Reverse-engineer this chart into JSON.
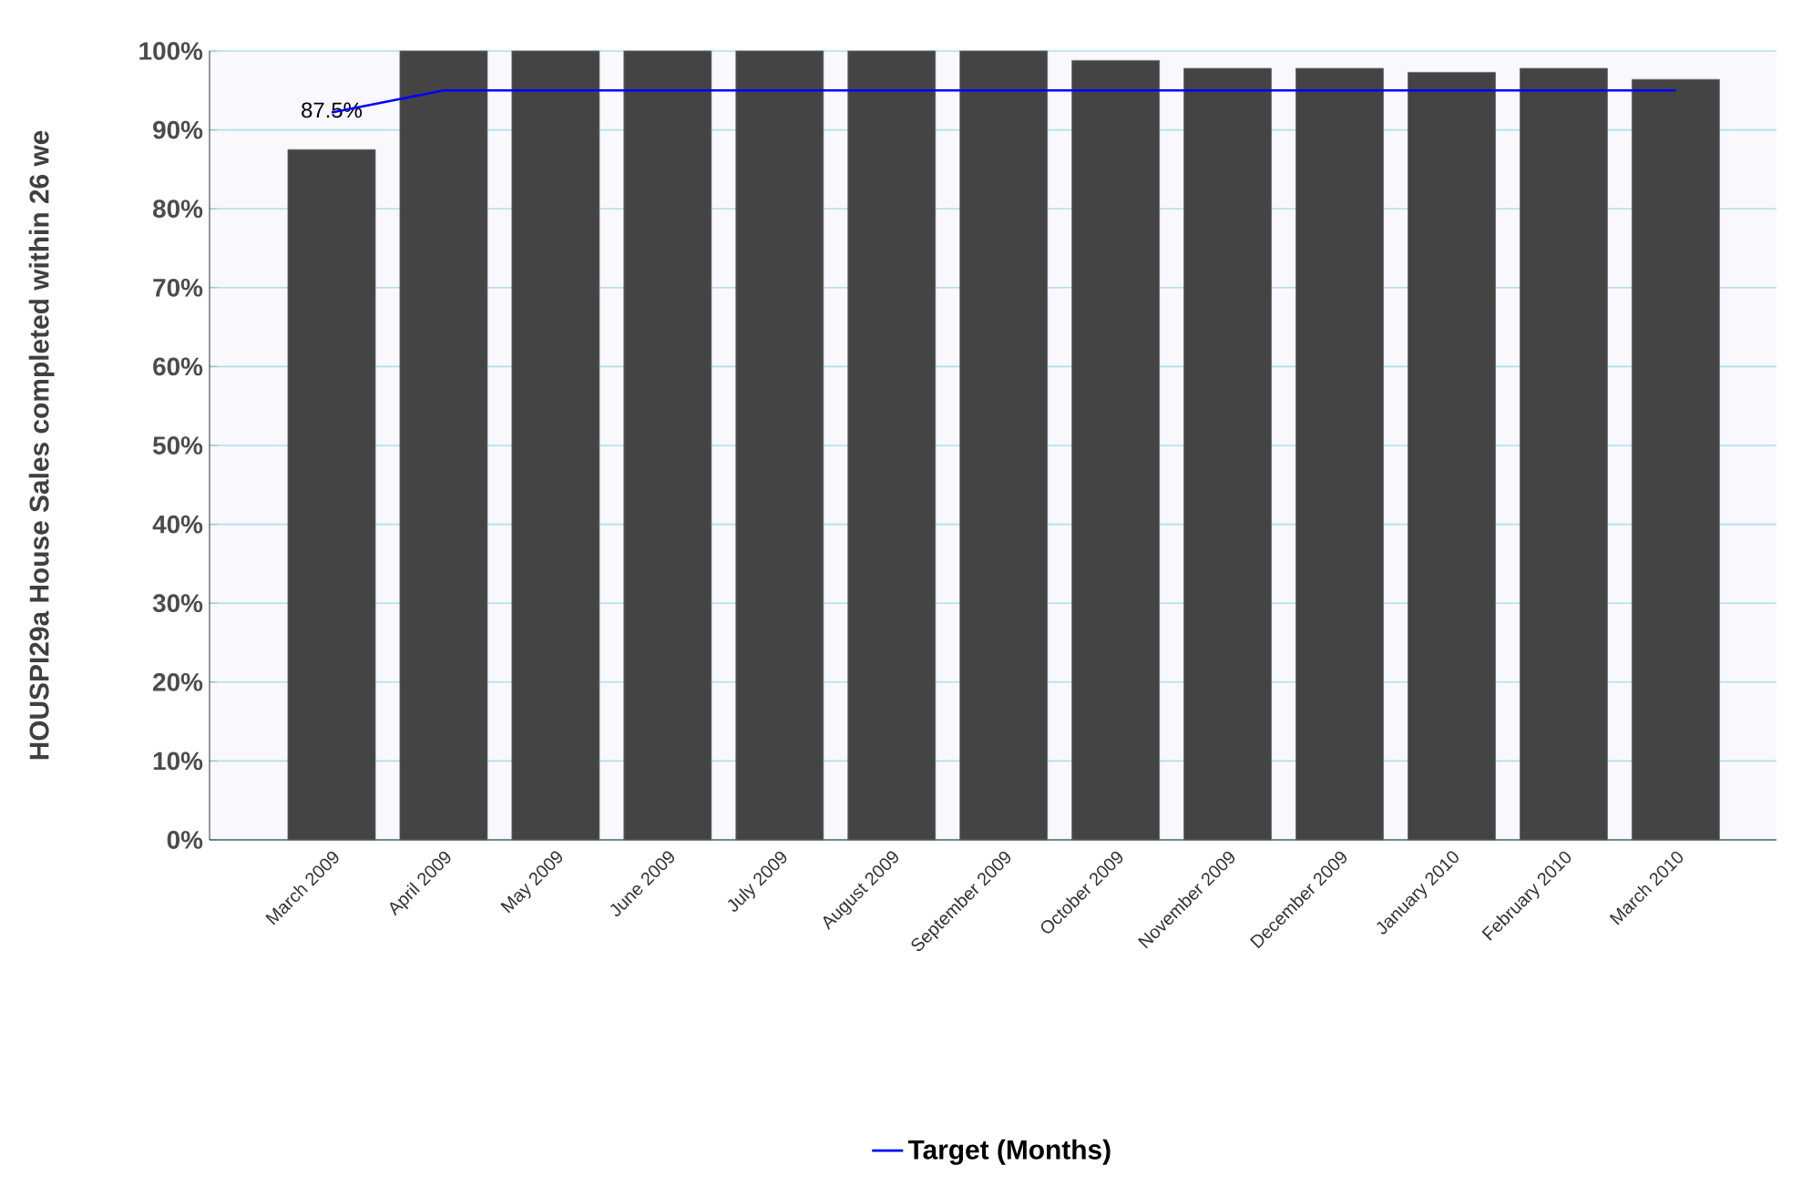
{
  "chart_data": {
    "type": "bar",
    "ylabel": "HOUSPI29a House Sales completed within 26 we",
    "categories": [
      "March 2009",
      "April 2009",
      "May 2009",
      "June 2009",
      "July 2009",
      "August 2009",
      "September 2009",
      "October 2009",
      "November 2009",
      "December 2009",
      "January 2010",
      "February 2010",
      "March 2010"
    ],
    "series": [
      {
        "color": "#444444",
        "values": [
          87.5,
          100,
          100,
          100,
          100,
          100,
          100,
          98.8,
          97.8,
          97.8,
          97.3,
          97.8,
          96.4
        ],
        "value_labels": [
          "87.5%",
          null,
          null,
          null,
          null,
          null,
          null,
          null,
          null,
          null,
          null,
          null,
          null
        ]
      },
      {
        "type": "line",
        "name": "Target (Months)",
        "color": "#0000ff",
        "values": [
          92.2,
          95,
          95,
          95,
          95,
          95,
          95,
          95,
          95,
          95,
          95,
          95,
          95
        ]
      }
    ],
    "ylim": [
      0,
      100
    ],
    "yticks": [
      {
        "value": 0,
        "label": "0%"
      },
      {
        "value": 10,
        "label": "10%"
      },
      {
        "value": 20,
        "label": "20%"
      },
      {
        "value": 30,
        "label": "30%"
      },
      {
        "value": 40,
        "label": "40%"
      },
      {
        "value": 50,
        "label": "50%"
      },
      {
        "value": 60,
        "label": "60%"
      },
      {
        "value": 70,
        "label": "70%"
      },
      {
        "value": 80,
        "label": "80%"
      },
      {
        "value": 90,
        "label": "90%"
      },
      {
        "value": 100,
        "label": "100%"
      }
    ],
    "grid": "y",
    "legend": "bottom",
    "marker": "none",
    "line_style": "solid"
  }
}
